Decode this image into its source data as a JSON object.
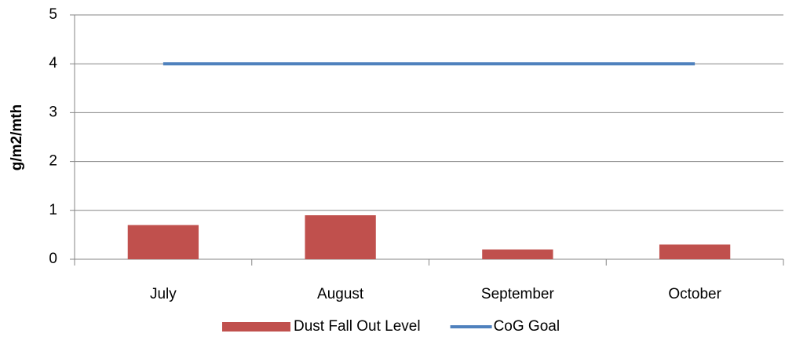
{
  "chart_data": {
    "type": "bar",
    "y_label": "g/m2/mth",
    "categories": [
      "July",
      "August",
      "September",
      "October"
    ],
    "series": [
      {
        "name": "Dust Fall Out Level",
        "type": "bar",
        "color": "#c0504d",
        "values": [
          0.7,
          0.9,
          0.2,
          0.3
        ]
      },
      {
        "name": "CoG Goal",
        "type": "line",
        "color": "#4f81bd",
        "values": [
          4,
          4,
          4,
          4
        ]
      }
    ],
    "ylim": [
      0,
      5
    ],
    "yticks": [
      0,
      1,
      2,
      3,
      4,
      5
    ],
    "grid": true,
    "legend": "bottom"
  }
}
